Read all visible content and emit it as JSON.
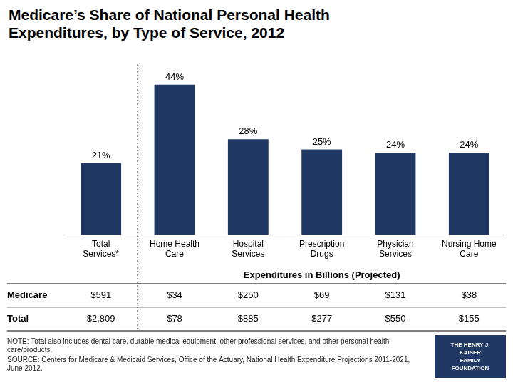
{
  "chart_data": {
    "type": "bar",
    "title": "Medicare’s Share of National Personal Health\nExpenditures, by Type of Service, 2012",
    "categories": [
      "Total\nServices*",
      "Home Health\nCare",
      "Hospital\nServices",
      "Prescription\nDrugs",
      "Physician\nServices",
      "Nursing Home\nCare"
    ],
    "values": [
      21,
      44,
      28,
      25,
      24,
      24
    ],
    "value_labels": [
      "21%",
      "44%",
      "28%",
      "25%",
      "24%",
      "24%"
    ],
    "data_labels": true,
    "color": "#1f3864",
    "ylim": [
      0,
      50
    ],
    "grid": false,
    "tick_labels": "x",
    "table": {
      "title": "Expenditures in Billions (Projected)",
      "row_labels": [
        "Medicare",
        "Total"
      ],
      "rows": [
        [
          "$591",
          "$34",
          "$250",
          "$69",
          "$131",
          "$38"
        ],
        [
          "$2,809",
          "$78",
          "$885",
          "$277",
          "$550",
          "$155"
        ]
      ]
    },
    "notes": [
      "NOTE: Total also includes dental care, durable medical equipment, other professional services, and other personal health care/products.",
      "SOURCE: Centers for Medicare & Medicaid Services, Office of the Actuary, National Health Expenditure Projections 2011-2021, June 2012."
    ],
    "annotations": [
      "THE HENRY J.\nKAISER\nFAMILY\nFOUNDATION"
    ]
  }
}
